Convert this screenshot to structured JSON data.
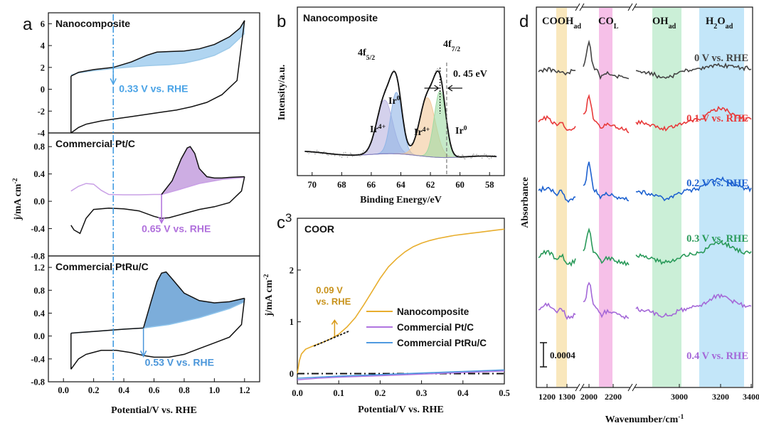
{
  "chart_data": [
    {
      "id": "a",
      "type": "line",
      "panel_label": "a",
      "ylabel": "j/mA cm",
      "ylabel_sup": "-2",
      "xlabel": "Potential/V vs. RHE",
      "xlim": [
        -0.1,
        1.3
      ],
      "xticks": [
        "0.0",
        "0.2",
        "0.4",
        "0.6",
        "0.8",
        "1.0",
        "1.2"
      ],
      "xtick_values": [
        0,
        0.2,
        0.4,
        0.6,
        0.8,
        1.0,
        1.2
      ],
      "vline_x": 0.33,
      "subplots": [
        {
          "title": "Nanocomposite",
          "ylim": [
            -4,
            7
          ],
          "yticks": [
            "-4",
            "-2",
            "0",
            "2",
            "4",
            "6"
          ],
          "ytick_values": [
            -4,
            -2,
            0,
            2,
            4,
            6
          ],
          "annotation": "0.33 V vs. RHE",
          "fill_color": "#a7d0f0",
          "light_color": "#9ecae9",
          "light_curve": {
            "x": [
              0.05,
              0.1,
              0.2,
              0.33,
              0.45,
              0.55,
              0.62,
              0.7,
              0.8,
              0.9,
              1.0,
              1.1,
              1.2
            ],
            "y": [
              1.3,
              1.5,
              1.7,
              1.9,
              2.05,
              2.15,
              2.2,
              2.25,
              2.4,
              2.7,
              3.1,
              3.8,
              5.1
            ]
          },
          "anodic": {
            "x": [
              0.33,
              0.45,
              0.55,
              0.62,
              0.7,
              0.8,
              0.9,
              1.0,
              1.1,
              1.17,
              1.2
            ],
            "y": [
              2.0,
              2.5,
              3.1,
              3.4,
              3.45,
              3.5,
              3.7,
              4.1,
              4.8,
              5.6,
              6.3
            ]
          },
          "forward": {
            "x": [
              0.05,
              0.1,
              0.2,
              0.33
            ],
            "y": [
              1.2,
              1.55,
              1.8,
              2.0
            ]
          },
          "cathodic": {
            "x": [
              1.2,
              1.15,
              1.05,
              0.95,
              0.85,
              0.75,
              0.65,
              0.55,
              0.45,
              0.35,
              0.25,
              0.15,
              0.1,
              0.06,
              0.05
            ],
            "y": [
              6.3,
              0.8,
              -0.5,
              -1.2,
              -1.6,
              -1.9,
              -2.1,
              -2.3,
              -2.5,
              -2.7,
              -2.9,
              -3.2,
              -3.5,
              -3.9,
              -4.0
            ]
          },
          "start_drop": {
            "x": [
              0.05,
              0.05
            ],
            "y": [
              1.2,
              -4.0
            ]
          }
        },
        {
          "title": "Commercial Pt/C",
          "ylim": [
            -0.8,
            1.0
          ],
          "yticks": [
            "-0.8",
            "-0.4",
            "0.0",
            "0.4",
            "0.8"
          ],
          "ytick_values": [
            -0.8,
            -0.4,
            0.0,
            0.4,
            0.8
          ],
          "annotation": "0.65 V vs. RHE",
          "annotation_x": 0.65,
          "fill_color": "#c8a4e0",
          "light_color": "#c9a0e6",
          "light_curve": {
            "x": [
              0.05,
              0.1,
              0.15,
              0.2,
              0.25,
              0.3,
              0.4,
              0.5,
              0.6,
              0.65,
              0.75,
              0.9,
              1.05,
              1.2
            ],
            "y": [
              0.15,
              0.22,
              0.26,
              0.25,
              0.16,
              0.1,
              0.095,
              0.095,
              0.1,
              0.1,
              0.16,
              0.26,
              0.32,
              0.35
            ]
          },
          "anodic": {
            "x": [
              0.65,
              0.72,
              0.78,
              0.82,
              0.84,
              0.87,
              0.9,
              0.95,
              1.0,
              1.05,
              1.1,
              1.2
            ],
            "y": [
              0.1,
              0.3,
              0.62,
              0.78,
              0.8,
              0.7,
              0.48,
              0.36,
              0.34,
              0.34,
              0.35,
              0.36
            ]
          },
          "forward": null,
          "cathodic": {
            "x": [
              1.2,
              1.18,
              1.1,
              1.0,
              0.9,
              0.8,
              0.7,
              0.65,
              0.6,
              0.5,
              0.4,
              0.3,
              0.2,
              0.15,
              0.11,
              0.07,
              0.05
            ],
            "y": [
              0.36,
              0.15,
              -0.02,
              -0.08,
              -0.12,
              -0.18,
              -0.24,
              -0.25,
              -0.22,
              -0.14,
              -0.11,
              -0.1,
              -0.12,
              -0.25,
              -0.47,
              -0.42,
              -0.35
            ]
          },
          "start_drop": null
        },
        {
          "title": "Commercial PtRu/C",
          "ylim": [
            -0.8,
            1.4
          ],
          "yticks": [
            "-0.8",
            "-0.4",
            "0.0",
            "0.4",
            "0.8",
            "1.2"
          ],
          "ytick_values": [
            -0.8,
            -0.4,
            0.0,
            0.4,
            0.8,
            1.2
          ],
          "annotation": "0.53 V vs. RHE",
          "annotation_x": 0.53,
          "fill_color": "#6ea4d6",
          "light_color": "#8ec4ec",
          "light_curve": {
            "x": [
              0.05,
              0.1,
              0.2,
              0.3,
              0.4,
              0.53,
              0.7,
              0.9,
              1.1,
              1.2
            ],
            "y": [
              0.05,
              0.06,
              0.08,
              0.1,
              0.12,
              0.14,
              0.2,
              0.32,
              0.48,
              0.6
            ]
          },
          "anodic": {
            "x": [
              0.53,
              0.58,
              0.62,
              0.65,
              0.68,
              0.72,
              0.8,
              0.9,
              1.0,
              1.1,
              1.2
            ],
            "y": [
              0.14,
              0.6,
              0.95,
              1.1,
              1.12,
              1.0,
              0.75,
              0.62,
              0.58,
              0.6,
              0.66
            ]
          },
          "forward": {
            "x": [
              0.05,
              0.1,
              0.2,
              0.3,
              0.4,
              0.53
            ],
            "y": [
              0.05,
              0.06,
              0.08,
              0.1,
              0.12,
              0.14
            ]
          },
          "cathodic": {
            "x": [
              1.2,
              1.18,
              1.1,
              1.0,
              0.9,
              0.8,
              0.7,
              0.6,
              0.53,
              0.45,
              0.35,
              0.25,
              0.15,
              0.1,
              0.05
            ],
            "y": [
              0.66,
              0.2,
              -0.02,
              -0.12,
              -0.22,
              -0.32,
              -0.37,
              -0.37,
              -0.34,
              -0.29,
              -0.25,
              -0.25,
              -0.32,
              -0.4,
              -0.58
            ]
          },
          "start_drop": {
            "x": [
              0.05,
              0.05
            ],
            "y": [
              0.05,
              -0.58
            ]
          }
        }
      ]
    },
    {
      "id": "b",
      "type": "line",
      "panel_label": "b",
      "title": "Nanocomposite",
      "xlabel": "Binding Energy/eV",
      "ylabel": "Intensity/a.u.",
      "xlim": [
        71,
        57
      ],
      "xticks": [
        "70",
        "68",
        "66",
        "64",
        "62",
        "60",
        "58"
      ],
      "xtick_values": [
        70,
        68,
        66,
        64,
        62,
        60,
        58
      ],
      "dashed_vline_x": 60.9,
      "solid_vline_x": 61.35,
      "labels": {
        "peak_left_main": "4f",
        "peak_left_sub": "5/2",
        "peak_right_main": "4f",
        "peak_right_sub": "7/2",
        "shift": "0. 45 eV",
        "ir0_left_main": "Ir",
        "ir0_left_sup": "0",
        "ir4_left_main": "Ir",
        "ir4_left_sup": "4+",
        "ir4_right_main": "Ir",
        "ir4_right_sup": "4+",
        "ir0_right_main": "Ir",
        "ir0_right_sup": "0"
      },
      "components": [
        {
          "name": "Ir4+ 5/2",
          "center": 65.1,
          "height": 0.42,
          "width": 0.75,
          "color": "#b8b2e0"
        },
        {
          "name": "Ir0 5/2",
          "center": 64.3,
          "height": 0.48,
          "width": 0.55,
          "color": "#8fb4e6"
        },
        {
          "name": "Ir4+ 7/2",
          "center": 62.2,
          "height": 0.46,
          "width": 0.75,
          "color": "#f2c89a"
        },
        {
          "name": "Ir0 7/2",
          "center": 61.35,
          "height": 0.52,
          "width": 0.55,
          "color": "#9fdaa4"
        }
      ],
      "background": {
        "left": 0.12,
        "right": 0.0
      }
    },
    {
      "id": "c",
      "type": "line",
      "panel_label": "c",
      "panel_label_sup": "3",
      "title": "COOR",
      "xlabel": "Potential/V vs. RHE",
      "ylabel": "j/mA cm",
      "ylabel_sup": "-2",
      "xlim": [
        0.0,
        0.5
      ],
      "ylim": [
        -0.2,
        3.0
      ],
      "xticks": [
        "0.0",
        "0.1",
        "0.2",
        "0.3",
        "0.4",
        "0.5"
      ],
      "xtick_values": [
        0.0,
        0.1,
        0.2,
        0.3,
        0.4,
        0.5
      ],
      "yticks": [
        "0",
        "1",
        "2"
      ],
      "ytick_values": [
        0,
        1,
        2
      ],
      "annotation_line1": "0.09 V",
      "annotation_line2": "vs. RHE",
      "annotation_x": 0.09,
      "series": [
        {
          "name": "Nanocomposite",
          "color": "#e8ae2e",
          "x": [
            0.0,
            0.005,
            0.01,
            0.02,
            0.04,
            0.06,
            0.08,
            0.1,
            0.12,
            0.14,
            0.16,
            0.18,
            0.2,
            0.22,
            0.24,
            0.26,
            0.28,
            0.3,
            0.32,
            0.34,
            0.36,
            0.38,
            0.4,
            0.42,
            0.44,
            0.46,
            0.48,
            0.5
          ],
          "y": [
            0.0,
            0.25,
            0.38,
            0.47,
            0.54,
            0.6,
            0.67,
            0.76,
            0.9,
            1.08,
            1.32,
            1.58,
            1.84,
            2.06,
            2.22,
            2.35,
            2.45,
            2.52,
            2.57,
            2.61,
            2.64,
            2.67,
            2.69,
            2.71,
            2.73,
            2.75,
            2.77,
            2.79
          ]
        },
        {
          "name": "Commercial Pt/C",
          "color": "#b074e0",
          "x": [
            0.0,
            0.05,
            0.1,
            0.2,
            0.3,
            0.4,
            0.5
          ],
          "y": [
            -0.12,
            -0.09,
            -0.07,
            -0.04,
            -0.01,
            0.02,
            0.05
          ]
        },
        {
          "name": "Commercial PtRu/C",
          "color": "#4f9ae0",
          "x": [
            0.0,
            0.05,
            0.1,
            0.2,
            0.3,
            0.4,
            0.5
          ],
          "y": [
            -0.09,
            -0.07,
            -0.05,
            -0.02,
            0.01,
            0.04,
            0.07
          ]
        }
      ],
      "tangent": {
        "x": [
          0.04,
          0.125
        ],
        "y": [
          0.53,
          0.82
        ]
      }
    },
    {
      "id": "d",
      "type": "line",
      "panel_label": "d",
      "xlabel": "Wavenumber/cm",
      "xlabel_sup": "-1",
      "ylabel": "Absorbance",
      "scale_label": "0.0004",
      "xticks": [
        "1200",
        "1300",
        "2000",
        "2200",
        "3000",
        "3200",
        "3400"
      ],
      "bands": [
        {
          "main": "COOH",
          "sub": "ad",
          "color": "#f8e3b0"
        },
        {
          "main": "CO",
          "sub": "L",
          "color": "#f5b5e4"
        },
        {
          "main": "OH",
          "sub": "ad",
          "color": "#c2ecd0"
        },
        {
          "main": "H",
          "sub": "2",
          "main2": "O",
          "sub2": "ad",
          "color": "#b8e2f8"
        }
      ],
      "series": [
        {
          "name": "0 V vs. RHE",
          "color": "#444444"
        },
        {
          "name": "0.1 V vs. RHE",
          "color": "#e83a3a"
        },
        {
          "name": "0.2 V vs. RHE",
          "color": "#1e62d0"
        },
        {
          "name": "0.3 V vs. RHE",
          "color": "#2a9a5a"
        },
        {
          "name": "0.4 V vs. RHE",
          "color": "#a468d8"
        }
      ]
    }
  ]
}
